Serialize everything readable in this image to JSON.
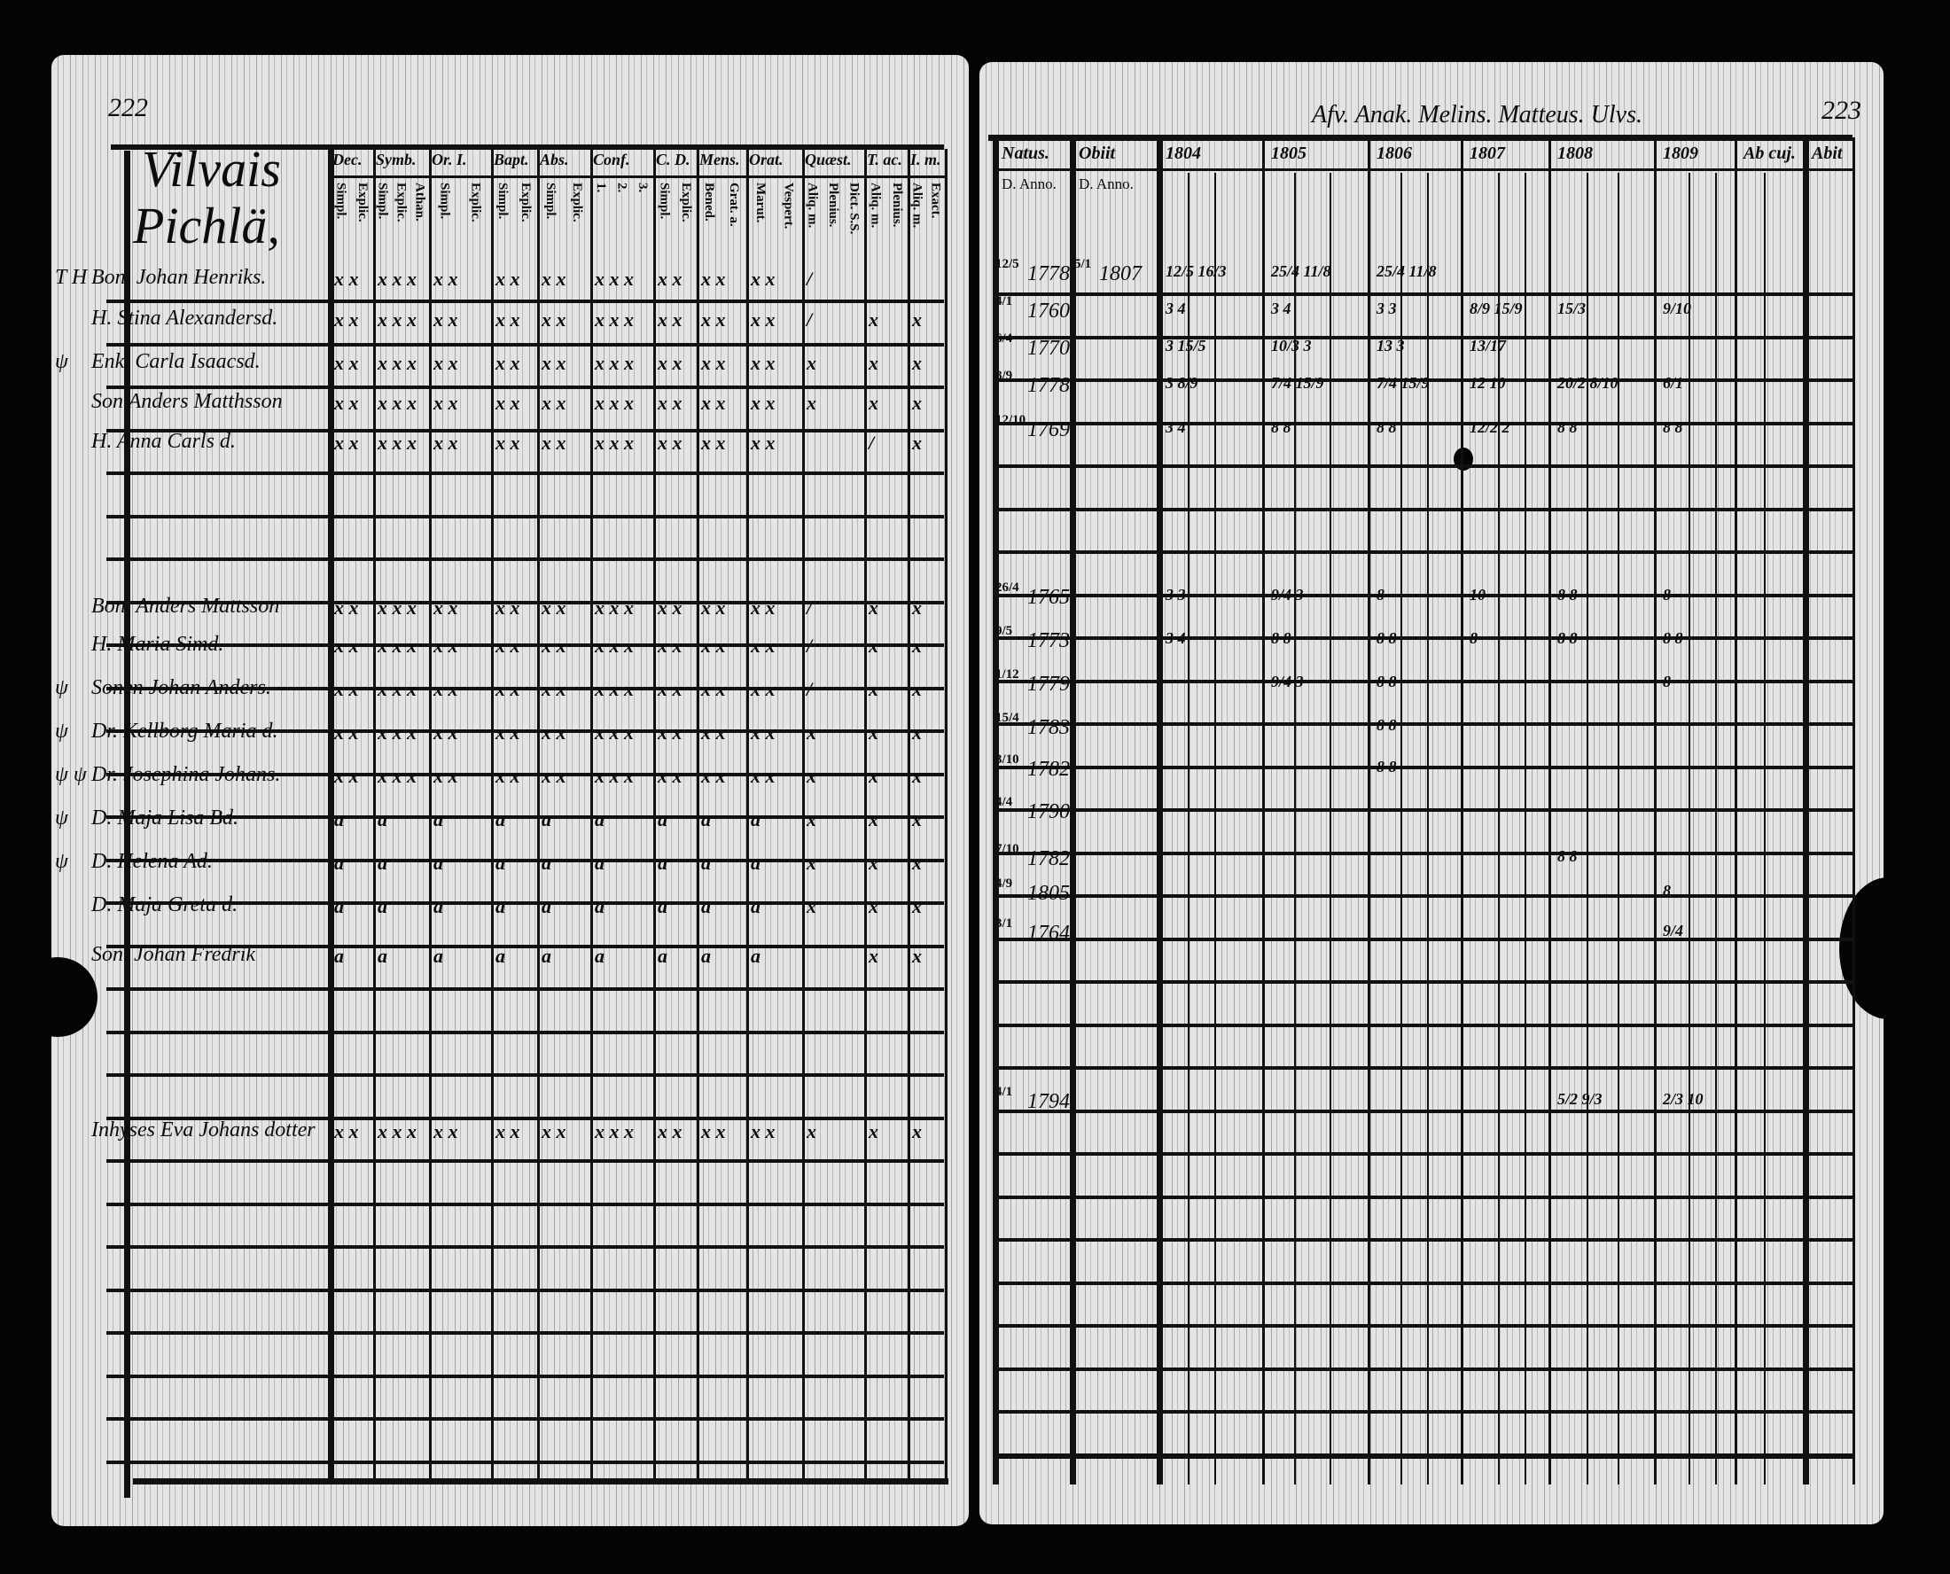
{
  "left_page": {
    "page_number": "222",
    "village_heading": [
      "Vilvais",
      "Pichlä,"
    ],
    "columns": [
      {
        "label": "Dec.",
        "sub": [
          "Simpl.",
          "Explic."
        ]
      },
      {
        "label": "Symb.",
        "sub": [
          "Simpl.",
          "Explic.",
          "Athan."
        ]
      },
      {
        "label": "Or. I.",
        "sub": [
          "Simpl.",
          "Explic."
        ]
      },
      {
        "label": "Bapt.",
        "sub": [
          "Simpl.",
          "Explic."
        ]
      },
      {
        "label": "Abs.",
        "sub": [
          "Simpl.",
          "Explic."
        ]
      },
      {
        "label": "Conf.",
        "sub": [
          "1.",
          "2.",
          "3."
        ]
      },
      {
        "label": "C. D.",
        "sub": [
          "Simpl.",
          "Explic."
        ]
      },
      {
        "label": "Mens.",
        "sub": [
          "Bened.",
          "Grat. a."
        ]
      },
      {
        "label": "Orat.",
        "sub": [
          "Marut.",
          "Vespert."
        ]
      },
      {
        "label": "Quæst.",
        "sub": [
          "Aliq. m.",
          "Plenius.",
          "Dict. S.S."
        ]
      },
      {
        "label": "T. ac.",
        "sub": [
          "Aliq. m.",
          "Plenius."
        ]
      },
      {
        "label": "I. m.",
        "sub": [
          "Aliq. m.",
          "Exact."
        ]
      }
    ],
    "rows": [
      {
        "margin": "T H",
        "name": "Bon. Johan Henriks.",
        "marks": [
          "x x",
          "x x x",
          "x x",
          "x x",
          "x x",
          "x x x",
          "x x",
          "x x",
          "x x",
          "/",
          "",
          ""
        ]
      },
      {
        "margin": "",
        "name": "H. Stina Alexandersd.",
        "marks": [
          "x x",
          "x x x",
          "x x",
          "x x",
          "x x",
          "x x x",
          "x x",
          "x x",
          "x x",
          "/",
          "x",
          "x"
        ]
      },
      {
        "margin": "ψ",
        "name": "Enk. Carla Isaacsd.",
        "marks": [
          "x x",
          "x x x",
          "x x",
          "x x",
          "x x",
          "x x x",
          "x x",
          "x x",
          "x x",
          "x",
          "x",
          "x"
        ]
      },
      {
        "margin": "",
        "name": "Son Anders Matthsson",
        "marks": [
          "x x",
          "x x x",
          "x x",
          "x x",
          "x x",
          "x x x",
          "x x",
          "x x",
          "x x",
          "x",
          "x",
          "x"
        ]
      },
      {
        "margin": "",
        "name": "H. Anna Carls d.",
        "marks": [
          "x x",
          "x x x",
          "x x",
          "x x",
          "x x",
          "x x x",
          "x x",
          "x x",
          "x x",
          "",
          "/",
          "x"
        ]
      },
      {
        "margin": "",
        "name": "Bon. Anders Mattsson",
        "marks": [
          "x x",
          "x x x",
          "x x",
          "x x",
          "x x",
          "x x x",
          "x x",
          "x x",
          "x x",
          "/",
          "x",
          "x"
        ]
      },
      {
        "margin": "",
        "name": "H. Maria Simd.",
        "marks": [
          "x x",
          "x x x",
          "x x",
          "x x",
          "x x",
          "x x x",
          "x x",
          "x x",
          "x x",
          "/",
          "x",
          "x"
        ]
      },
      {
        "margin": "ψ",
        "name": "Sonen Johan Anders.",
        "marks": [
          "x x",
          "x x x",
          "x x",
          "x x",
          "x x",
          "x x x",
          "x x",
          "x x",
          "x x",
          "/",
          "x",
          "x"
        ]
      },
      {
        "margin": "ψ",
        "name": "Dr. Kellborg Maria d.",
        "marks": [
          "x x",
          "x x x",
          "x x",
          "x x",
          "x x",
          "x x x",
          "x x",
          "x x",
          "x x",
          "x",
          "x",
          "x"
        ]
      },
      {
        "margin": "ψ ψ",
        "name": "Dr. Josephina Johans.",
        "marks": [
          "x x",
          "x x x",
          "x x",
          "x x",
          "x x",
          "x x x",
          "x x",
          "x x",
          "x x",
          "x",
          "x",
          "x"
        ]
      },
      {
        "margin": "ψ",
        "name": "D. Maja Lisa Bd.",
        "marks": [
          "ɑ",
          "ɑ",
          "ɑ",
          "ɑ",
          "ɑ",
          "ɑ",
          "ɑ",
          "ɑ",
          "ɑ",
          "x",
          "x",
          "x"
        ]
      },
      {
        "margin": "ψ",
        "name": "D. Helena Ad.",
        "marks": [
          "ɑ",
          "ɑ",
          "ɑ",
          "ɑ",
          "ɑ",
          "ɑ",
          "ɑ",
          "ɑ",
          "ɑ",
          "x",
          "x",
          "x"
        ]
      },
      {
        "margin": "",
        "name": "D. Maja Greta d.",
        "marks": [
          "ɑ",
          "ɑ",
          "ɑ",
          "ɑ",
          "ɑ",
          "ɑ",
          "ɑ",
          "ɑ",
          "ɑ",
          "x",
          "x",
          "x"
        ]
      },
      {
        "margin": "",
        "name": "Son. Johan Fredrik",
        "marks": [
          "ɑ",
          "ɑ",
          "ɑ",
          "ɑ",
          "ɑ",
          "ɑ",
          "ɑ",
          "ɑ",
          "ɑ",
          "",
          "x",
          "x"
        ]
      },
      {
        "margin": "",
        "name": "Inhyses Eva Johans dotter",
        "marks": [
          "x x",
          "x x x",
          "x x",
          "x x",
          "x x",
          "x x x",
          "x x",
          "x x",
          "x x",
          "x",
          "x",
          "x"
        ]
      }
    ]
  },
  "right_page": {
    "page_number": "223",
    "header_note": "Afv. Anak. Melins. Matteus. Ulvs.",
    "columns": [
      {
        "label": "Natus.",
        "sub": "D. Anno."
      },
      {
        "label": "Obiit",
        "sub": "D. Anno."
      },
      {
        "label": "1804",
        "sub": ""
      },
      {
        "label": "1805",
        "sub": ""
      },
      {
        "label": "1806",
        "sub": ""
      },
      {
        "label": "1807",
        "sub": ""
      },
      {
        "label": "1808",
        "sub": ""
      },
      {
        "label": "1809",
        "sub": ""
      },
      {
        "label": "Ab cuj.",
        "sub": ""
      },
      {
        "label": "Abit",
        "sub": ""
      }
    ],
    "rows": [
      {
        "natus_day": "12/5",
        "natus_year": "1778",
        "obiit_day": "5/1",
        "obiit_year": "1807",
        "years": [
          "12/5 16/3",
          "25/4 11/8",
          "25/4 11/8",
          "",
          "",
          ""
        ]
      },
      {
        "natus_day": "4/1",
        "natus_year": "1760",
        "obiit_day": "",
        "obiit_year": "",
        "years": [
          "3 4",
          "3 4",
          "3 3",
          "8/9 15/9",
          "15/3",
          "9/10"
        ]
      },
      {
        "natus_day": "6/4",
        "natus_year": "1770",
        "obiit_day": "",
        "obiit_year": "",
        "years": [
          "3 15/5",
          "10/3 3",
          "13 3",
          "13/17",
          "",
          ""
        ]
      },
      {
        "natus_day": "8/9",
        "natus_year": "1778",
        "obiit_day": "",
        "obiit_year": "",
        "years": [
          "3 8/9",
          "7/4 15/9",
          "7/4 15/9",
          "12 10",
          "20/2 8/10",
          "6/1"
        ]
      },
      {
        "natus_day": "12/10",
        "natus_year": "1769",
        "obiit_day": "",
        "obiit_year": "",
        "years": [
          "3 4",
          "8 8",
          "8 8",
          "12/2 2",
          "8 8",
          "8 8"
        ]
      },
      {
        "natus_day": "26/4",
        "natus_year": "1765",
        "obiit_day": "",
        "obiit_year": "",
        "years": [
          "3 3",
          "9/4 3",
          "8",
          "10",
          "8 8",
          "8"
        ]
      },
      {
        "natus_day": "9/5",
        "natus_year": "1773",
        "obiit_day": "",
        "obiit_year": "",
        "years": [
          "3 4",
          "8 8",
          "8 8",
          "8",
          "8 8",
          "8 8"
        ]
      },
      {
        "natus_day": "1/12",
        "natus_year": "1779",
        "obiit_day": "",
        "obiit_year": "",
        "years": [
          "",
          "9/4 3",
          "8 8",
          "",
          "",
          "8"
        ]
      },
      {
        "natus_day": "15/4",
        "natus_year": "1783",
        "obiit_day": "",
        "obiit_year": "",
        "years": [
          "",
          "",
          "8 8",
          "",
          "",
          ""
        ]
      },
      {
        "natus_day": "3/10",
        "natus_year": "1782",
        "obiit_day": "",
        "obiit_year": "",
        "years": [
          "",
          "",
          "8 8",
          "",
          "",
          ""
        ]
      },
      {
        "natus_day": "4/4",
        "natus_year": "1790",
        "obiit_day": "",
        "obiit_year": "",
        "years": [
          "",
          "",
          "",
          "",
          "",
          ""
        ]
      },
      {
        "natus_day": "7/10",
        "natus_year": "1782",
        "obiit_day": "",
        "obiit_year": "",
        "years": [
          "",
          "",
          "",
          "",
          "8 8",
          ""
        ]
      },
      {
        "natus_day": "4/9",
        "natus_year": "1805",
        "obiit_day": "",
        "obiit_year": "",
        "years": [
          "",
          "",
          "",
          "",
          "",
          "8"
        ]
      },
      {
        "natus_day": "3/1",
        "natus_year": "1764",
        "obiit_day": "",
        "obiit_year": "",
        "years": [
          "",
          "",
          "",
          "",
          "",
          "9/4"
        ]
      },
      {
        "natus_day": "4/1",
        "natus_year": "1794",
        "obiit_day": "",
        "obiit_year": "",
        "years": [
          "",
          "",
          "",
          "",
          "5/2 9/3",
          "2/3 10"
        ]
      }
    ]
  },
  "colors": {
    "paper": "#e4e4e4",
    "ink": "#0c0c0c",
    "background": "#050505"
  }
}
